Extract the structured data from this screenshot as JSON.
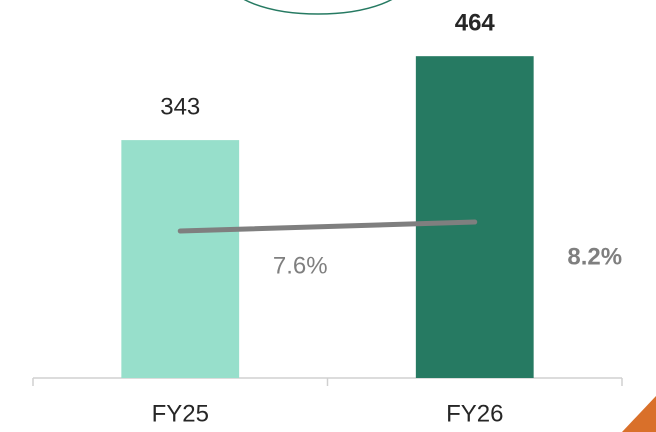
{
  "chart_data": {
    "type": "bar",
    "categories": [
      "FY25",
      "FY26"
    ],
    "ylim": [
      0,
      545
    ],
    "y2lim": [
      -2.2,
      23
    ],
    "series": [
      {
        "type": "bar",
        "colors": [
          "#97dfcb",
          "#267a62"
        ],
        "values": [
          343,
          464
        ],
        "label_bold": [
          false,
          true
        ],
        "label_color": "#262626"
      },
      {
        "type": "line",
        "axis": "y2",
        "color": "#7f7f7f",
        "values": [
          7.6,
          8.2
        ],
        "value_labels": [
          "7.6%",
          "8.2%"
        ],
        "label_bold": [
          false,
          true
        ]
      }
    ]
  }
}
